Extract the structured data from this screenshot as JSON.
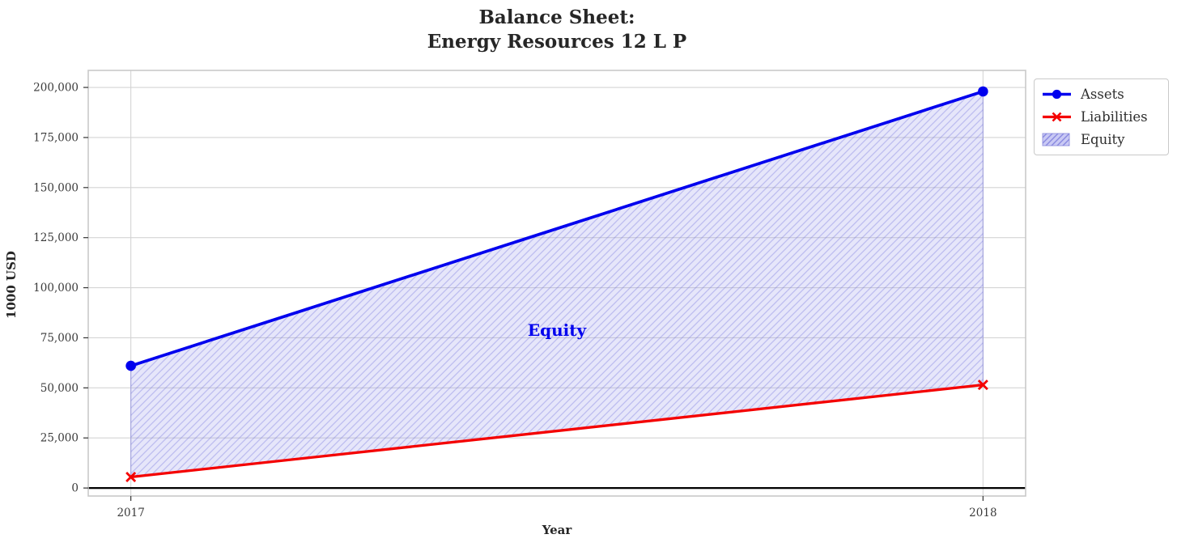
{
  "chart_data": {
    "type": "line",
    "title_line1": "Balance Sheet:",
    "title_line2": "Energy Resources 12 L P",
    "xlabel": "Year",
    "ylabel": "1000 USD",
    "x": [
      2017,
      2018
    ],
    "series": [
      {
        "name": "Assets",
        "color": "#0000ee",
        "marker": "circle",
        "line_width": 3.7,
        "values": [
          61000,
          198000
        ]
      },
      {
        "name": "Liabilities",
        "color": "#f40000",
        "marker": "x",
        "line_width": 3.3,
        "values": [
          5500,
          51500
        ]
      }
    ],
    "equity_area": {
      "label": "Equity",
      "between": [
        "Assets",
        "Liabilities"
      ],
      "equity_values": [
        55500,
        146500
      ],
      "fill_color": "rgba(150,150,235,0.24)",
      "hatch_color": "rgba(100,100,215,0.32)",
      "edge_color": "rgba(120,120,225,0.55)",
      "hatch": "///",
      "label_x": 2017.5,
      "label_y": 79000,
      "label_color": "#0000ee"
    },
    "xlim": [
      2016.95,
      2018.05
    ],
    "ylim": [
      -4000,
      208500
    ],
    "yticks": [
      0,
      25000,
      50000,
      75000,
      100000,
      125000,
      150000,
      175000,
      200000
    ],
    "ytick_labels": [
      "0",
      "25,000",
      "50,000",
      "75,000",
      "100,000",
      "125,000",
      "150,000",
      "175,000",
      "200,000"
    ],
    "xticks": [
      2017,
      2018
    ],
    "xtick_labels": [
      "2017",
      "2018"
    ],
    "grid": true,
    "zero_line": true,
    "legend_position": "upper-right-outside",
    "legend": [
      {
        "label": "Assets",
        "type": "line-circle",
        "color": "#0000ee"
      },
      {
        "label": "Liabilities",
        "type": "line-x",
        "color": "#f40000"
      },
      {
        "label": "Equity",
        "type": "hatch-patch",
        "color": "#b8b8f0",
        "hatch_color": "#8888e0"
      }
    ]
  },
  "colors": {
    "grid": "#d4d4d4",
    "frame": "#c9c9c9",
    "zero_line": "#000000",
    "tick_mark": "#333333",
    "tick_text": "#3a3a3a",
    "title_text": "#262626"
  }
}
